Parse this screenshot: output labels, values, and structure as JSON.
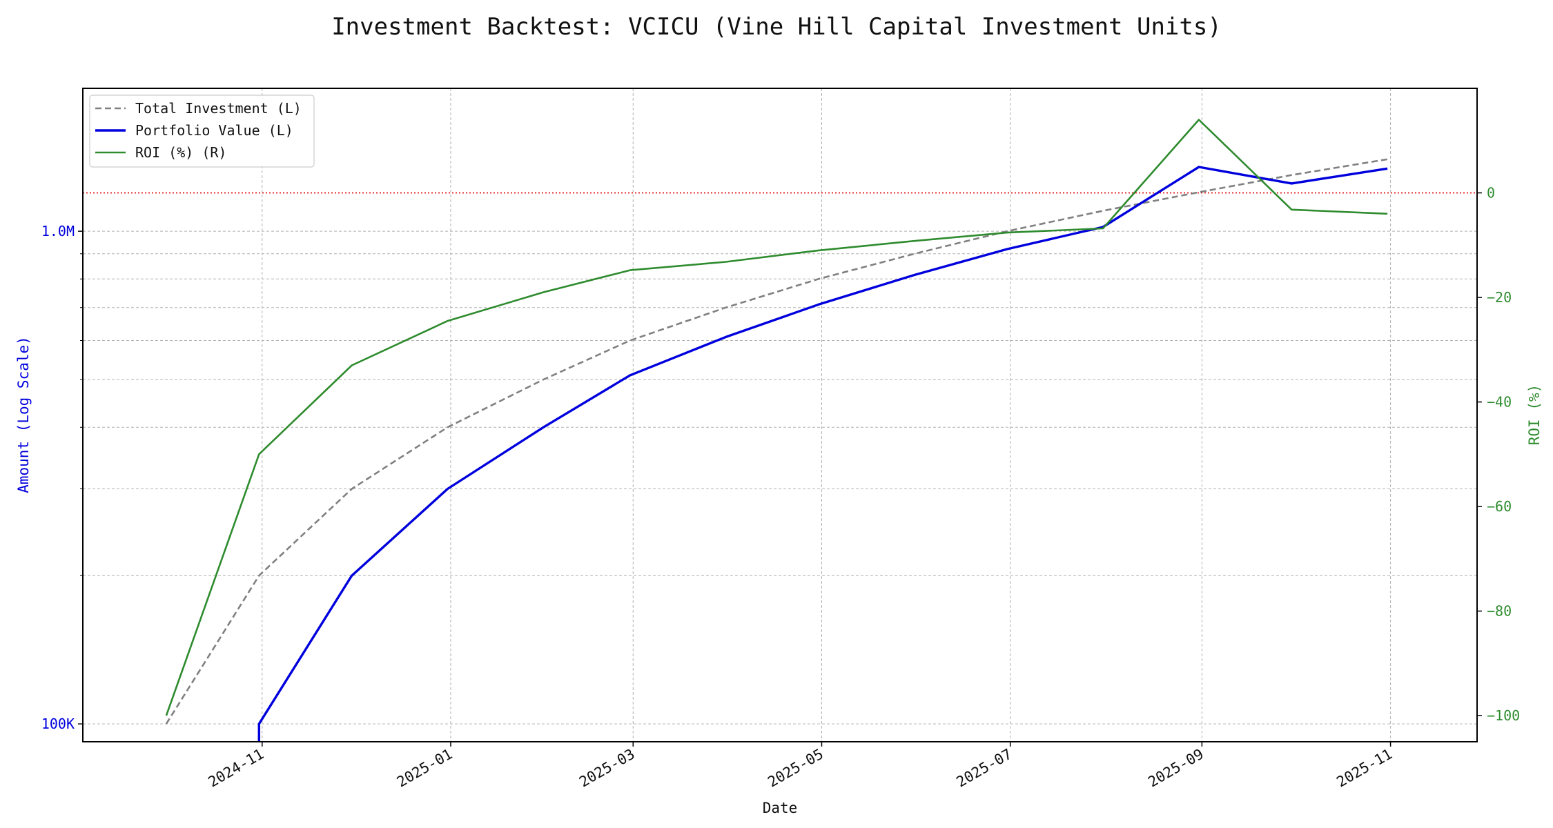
{
  "chart_data": {
    "type": "line",
    "title": "Investment Backtest: VCICU (Vine Hill Capital Investment Units)",
    "xlabel": "Date",
    "ylabel_left": "Amount (Log Scale)",
    "ylabel_right": "ROI (%)",
    "left_axis_scale": "log",
    "x_tick_labels": [
      "2024-11",
      "2025-01",
      "2025-03",
      "2025-05",
      "2025-07",
      "2025-09",
      "2025-11"
    ],
    "x_ticks": [
      "2024-11-01",
      "2025-01-01",
      "2025-03-01",
      "2025-05-01",
      "2025-07-01",
      "2025-09-01",
      "2025-11-01"
    ],
    "y_left_ticks": [
      100000,
      1000000
    ],
    "y_left_tick_labels": [
      "100K",
      "1.0M"
    ],
    "y_right_ticks": [
      0,
      -20,
      -40,
      -60,
      -80,
      -100
    ],
    "y_right_tick_labels": [
      "0",
      "−20",
      "−40",
      "−60",
      "−80",
      "−100"
    ],
    "x_range": [
      "2024-09-04",
      "2025-11-29"
    ],
    "y_left_range": [
      92000,
      1950000
    ],
    "y_right_range": [
      -105,
      20
    ],
    "x": [
      "2024-10-01",
      "2024-10-31",
      "2024-11-30",
      "2024-12-31",
      "2025-01-31",
      "2025-02-28",
      "2025-03-31",
      "2025-04-30",
      "2025-05-31",
      "2025-06-30",
      "2025-07-31",
      "2025-08-31",
      "2025-09-30",
      "2025-10-31"
    ],
    "series": [
      {
        "name": "Total Investment (L)",
        "axis": "left",
        "values": [
          100000,
          200000,
          300000,
          400000,
          500000,
          600000,
          700000,
          800000,
          900000,
          1000000,
          1100000,
          1200000,
          1300000,
          1400000
        ],
        "color": "#808080",
        "style": "dashed"
      },
      {
        "name": "Portfolio Value (L)",
        "axis": "left",
        "values": [
          null,
          100000,
          200000,
          300000,
          400000,
          510000,
          610000,
          710000,
          815000,
          920000,
          1020000,
          1350000,
          1250000,
          1340000
        ],
        "color": "#0000dd",
        "style": "solid-thick"
      },
      {
        "name": "ROI (%) (R)",
        "axis": "right",
        "values": [
          -100,
          -50,
          -33,
          -24.5,
          -19,
          -14.8,
          -13.2,
          -11,
          -9.2,
          -7.6,
          -6.8,
          14,
          -3.2,
          -4
        ],
        "color": "#2e8b2e",
        "style": "solid"
      }
    ],
    "reference_line": {
      "axis": "right",
      "value": 0,
      "color": "#dd0000",
      "style": "dotted"
    },
    "legend_position": "top-left",
    "grid": true
  }
}
